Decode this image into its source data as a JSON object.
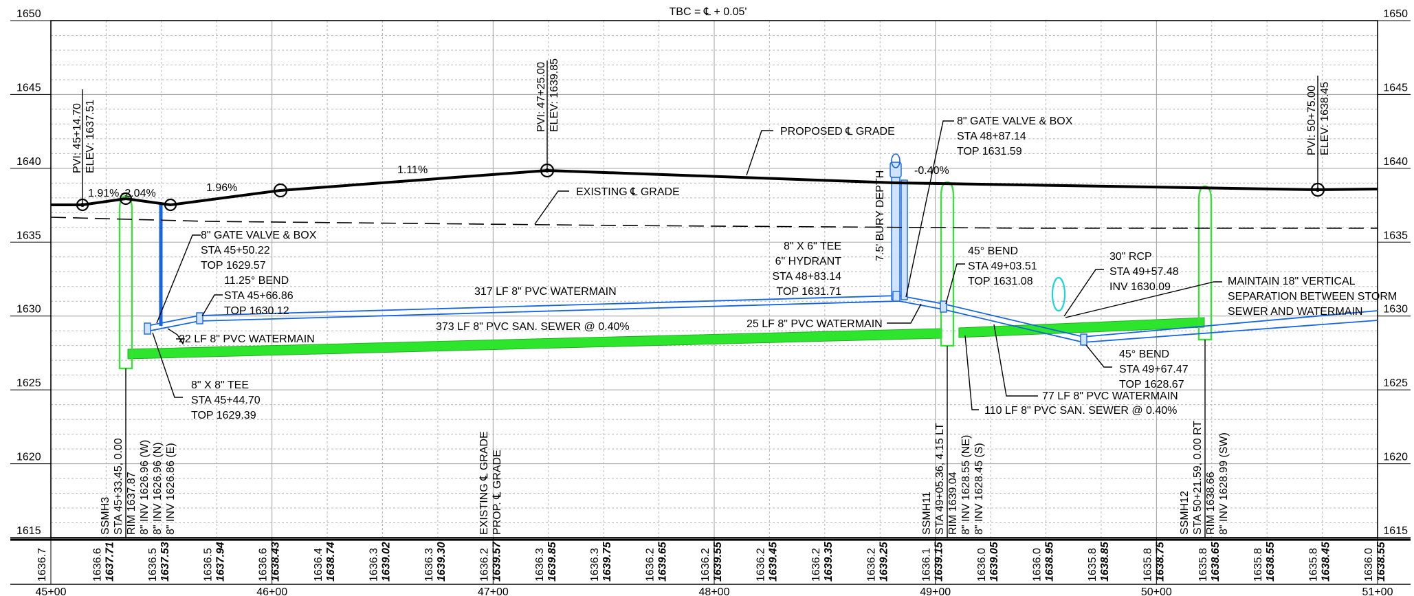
{
  "header": {
    "title": "TBC = ℄ + 0.05'"
  },
  "axes": {
    "elevations": [
      1650,
      1645,
      1640,
      1635,
      1630,
      1625,
      1620,
      1615
    ],
    "stations": [
      "45+00",
      "46+00",
      "47+00",
      "48+00",
      "49+00",
      "50+00",
      "51+00"
    ]
  },
  "grade_labels": {
    "proposed": "PROPOSED ℄ GRADE",
    "existing": "EXISTING ℄ GRADE",
    "bury_depth": "7.5' BURY DEPTH"
  },
  "slopes": [
    "1.91%",
    "-2.04%",
    "1.96%",
    "1.11%",
    "-0.40%"
  ],
  "pvis": [
    {
      "sta": "PVI: 45+14.70",
      "elev": "ELEV: 1637.51"
    },
    {
      "sta": "PVI: 47+25.00",
      "elev": "ELEV: 1639.85"
    },
    {
      "sta": "PVI: 50+75.00",
      "elev": "ELEV: 1638.45"
    }
  ],
  "callouts": {
    "gate_valve_1": [
      "8\" GATE VALVE & BOX",
      "STA 45+50.22",
      "TOP 1629.57"
    ],
    "bend_1125": [
      "11.25° BEND",
      "STA 45+66.86",
      "TOP 1630.12"
    ],
    "wm_22": "22 LF 8\" PVC WATERMAIN",
    "tee_8x8": [
      "8\" X 8\" TEE",
      "STA 45+44.70",
      "TOP 1629.39"
    ],
    "wm_317": "317 LF 8\" PVC WATERMAIN",
    "san_373": "373 LF 8\" PVC SAN. SEWER @ 0.40%",
    "gate_valve_2": [
      "8\" GATE VALVE & BOX",
      "STA 48+87.14",
      "TOP 1631.59"
    ],
    "tee_8x6": [
      "8\" X 6\" TEE",
      "6\" HYDRANT",
      "STA 48+83.14",
      "TOP 1631.71"
    ],
    "wm_25": "25 LF 8\" PVC WATERMAIN",
    "bend_45_a": [
      "45° BEND",
      "STA 49+03.51",
      "TOP 1631.08"
    ],
    "rcp_30": [
      "30\" RCP",
      "STA 49+57.48",
      "INV 1630.09"
    ],
    "separation": [
      "MAINTAIN 18\" VERTICAL",
      "SEPARATION BETWEEN STORM",
      "SEWER AND WATERMAIN"
    ],
    "bend_45_b": [
      "45° BEND",
      "STA 49+67.47",
      "TOP 1628.67"
    ],
    "wm_77": "77 LF 8\" PVC WATERMAIN",
    "san_110": "110 LF 8\" PVC SAN. SEWER @ 0.40%"
  },
  "structures": {
    "ssmh3": [
      "SSMH3",
      "STA 45+33.45, 0.00",
      "RIM 1637.87",
      "8\" INV 1626.96 (W)",
      "8\" INV 1626.96 (N)",
      "8\" INV 1626.86 (E)"
    ],
    "grade_legend": [
      "EXISTING ℄ GRADE",
      "PROP. ℄ GRADE"
    ],
    "ssmh11": [
      "SSMH11",
      "STA 49+05.36, 4.15 LT",
      "RIM 1639.04",
      "8\" INV 1628.55 (NE)",
      "8\" INV 1628.45 (S)"
    ],
    "ssmh12": [
      "SSMH12",
      "STA 50+21.59, 0.00 RT",
      "RIM 1638.66",
      "8\" INV 1628.99 (SW)"
    ]
  },
  "elevation_strip": [
    {
      "ex": "1636.7",
      "prop": ""
    },
    {
      "ex": "1636.6",
      "prop": "1637.71"
    },
    {
      "ex": "1636.5",
      "prop": "1637.53"
    },
    {
      "ex": "1636.5",
      "prop": "1637.94"
    },
    {
      "ex": "1636.6",
      "prop": "1638.43"
    },
    {
      "ex": "1636.4",
      "prop": "1638.74"
    },
    {
      "ex": "1636.3",
      "prop": "1639.02"
    },
    {
      "ex": "1636.3",
      "prop": "1639.30"
    },
    {
      "ex": "1636.2",
      "prop": "1639.57"
    },
    {
      "ex": "1636.3",
      "prop": "1639.85"
    },
    {
      "ex": "1636.3",
      "prop": "1639.75"
    },
    {
      "ex": "1636.2",
      "prop": "1639.65"
    },
    {
      "ex": "1636.2",
      "prop": "1639.55"
    },
    {
      "ex": "1636.2",
      "prop": "1639.45"
    },
    {
      "ex": "1636.2",
      "prop": "1639.35"
    },
    {
      "ex": "1636.2",
      "prop": "1639.25"
    },
    {
      "ex": "1636.1",
      "prop": "1639.15"
    },
    {
      "ex": "1636.0",
      "prop": "1639.05"
    },
    {
      "ex": "1636.0",
      "prop": "1638.95"
    },
    {
      "ex": "1635.8",
      "prop": "1638.85"
    },
    {
      "ex": "1635.8",
      "prop": "1638.75"
    },
    {
      "ex": "1635.8",
      "prop": "1638.65"
    },
    {
      "ex": "1635.8",
      "prop": "1638.55"
    },
    {
      "ex": "1635.8",
      "prop": "1638.45"
    },
    {
      "ex": "1636.0",
      "prop": "1638.55"
    }
  ]
}
